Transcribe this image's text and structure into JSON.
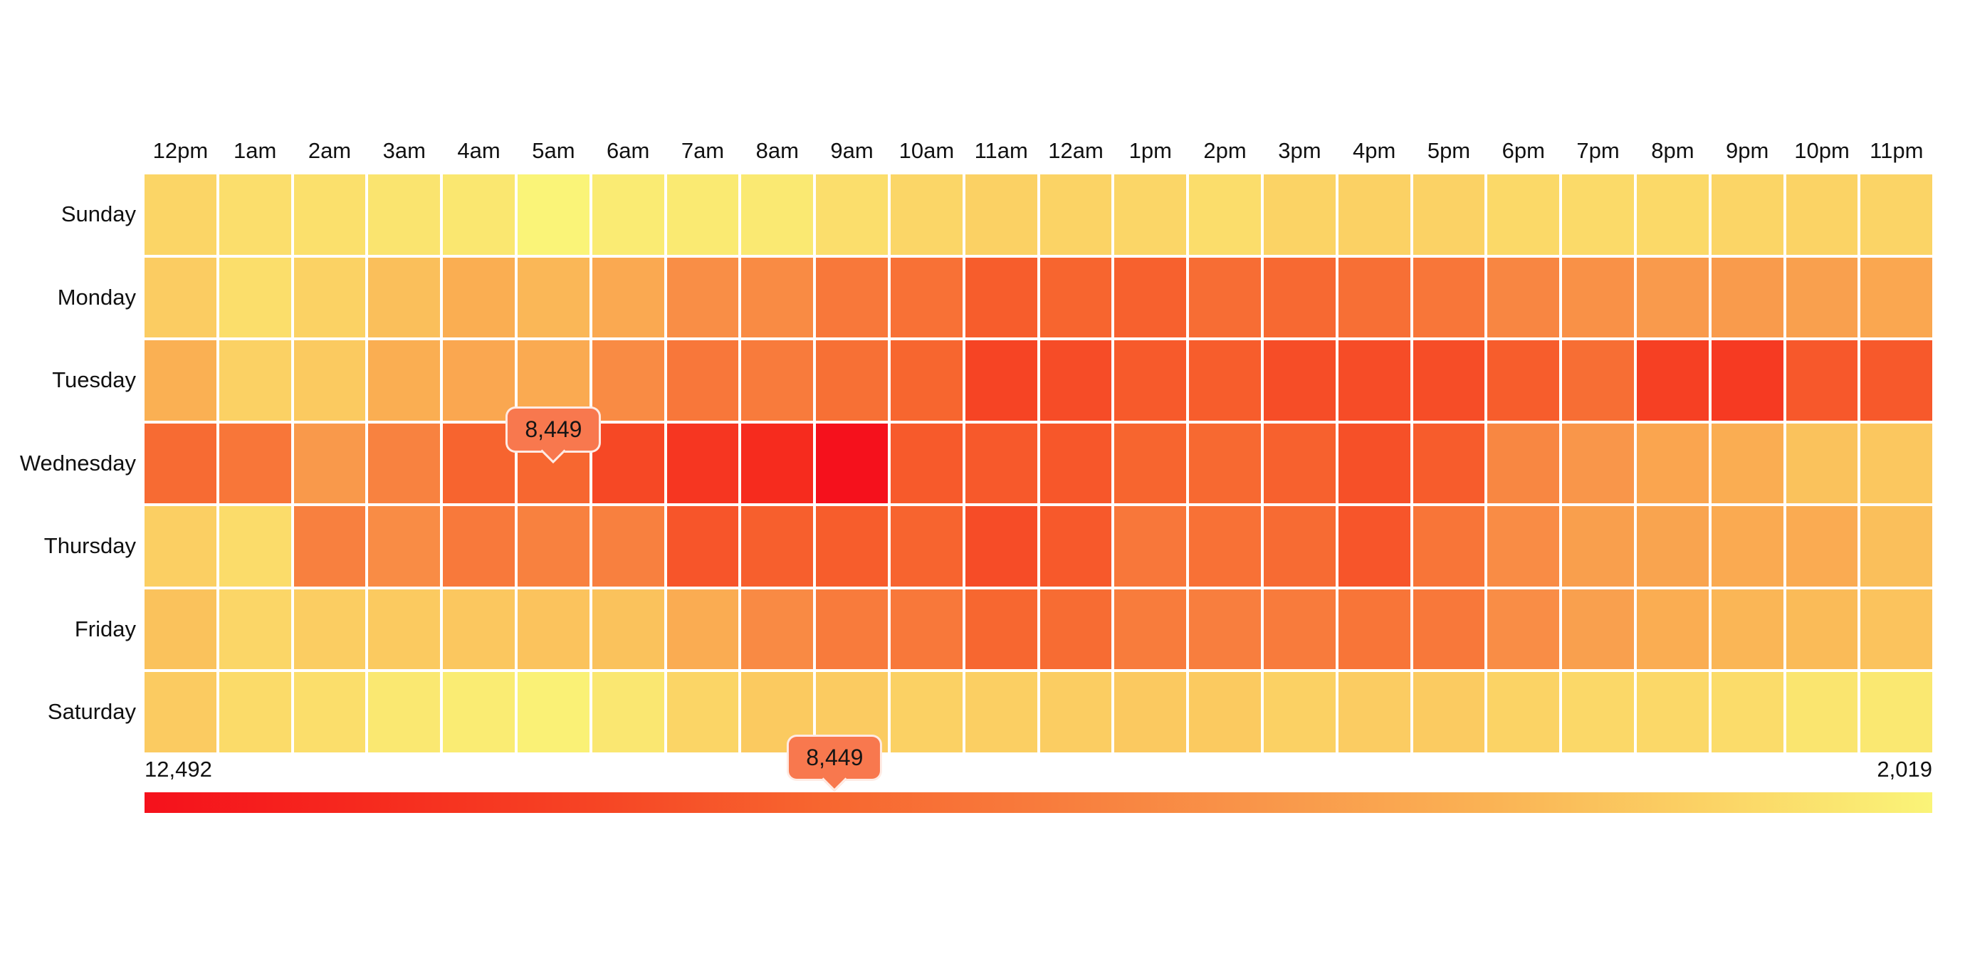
{
  "chart_data": {
    "type": "heatmap",
    "title": "",
    "x_categories": [
      "12pm",
      "1am",
      "2am",
      "3am",
      "4am",
      "5am",
      "6am",
      "7am",
      "8am",
      "9am",
      "10am",
      "11am",
      "12am",
      "1pm",
      "2pm",
      "3pm",
      "4pm",
      "5pm",
      "6pm",
      "7pm",
      "8pm",
      "9pm",
      "10pm",
      "11pm"
    ],
    "y_categories": [
      "Sunday",
      "Monday",
      "Tuesday",
      "Wednesday",
      "Thursday",
      "Friday",
      "Saturday"
    ],
    "values": [
      [
        3250,
        2880,
        2820,
        2650,
        2540,
        2019,
        2390,
        2400,
        2450,
        2880,
        3200,
        3390,
        3330,
        3200,
        2940,
        3330,
        3420,
        3360,
        3090,
        3060,
        3090,
        3240,
        3330,
        3280
      ],
      [
        3590,
        2900,
        3370,
        4110,
        4840,
        4440,
        5040,
        6340,
        6470,
        7440,
        7870,
        8900,
        8570,
        8740,
        8100,
        8300,
        7980,
        7570,
        6700,
        6200,
        5740,
        5690,
        5480,
        5140
      ],
      [
        4740,
        3420,
        3690,
        4840,
        5160,
        4990,
        6480,
        7500,
        7270,
        7920,
        8520,
        9870,
        9560,
        8990,
        8900,
        9500,
        9560,
        9500,
        8900,
        8050,
        10080,
        10400,
        9080,
        9040
      ],
      [
        8200,
        7570,
        5790,
        6900,
        8620,
        8449,
        9700,
        10600,
        11130,
        12492,
        9000,
        9040,
        9130,
        8570,
        8350,
        8720,
        9380,
        8940,
        6650,
        5950,
        5240,
        4890,
        4000,
        3800
      ],
      [
        3500,
        2960,
        7000,
        6420,
        7380,
        6950,
        7000,
        9200,
        8800,
        8900,
        8620,
        9560,
        9040,
        7500,
        7850,
        8200,
        9200,
        7630,
        6420,
        5530,
        5300,
        5000,
        4950,
        4110
      ],
      [
        4000,
        3200,
        3550,
        3690,
        3800,
        3970,
        4000,
        4940,
        6530,
        7270,
        7440,
        8460,
        8150,
        7210,
        7100,
        7270,
        7630,
        7440,
        6360,
        5480,
        4890,
        4480,
        4300,
        3970
      ],
      [
        3640,
        3030,
        2910,
        2480,
        2330,
        2130,
        2520,
        3250,
        3690,
        3640,
        3420,
        3470,
        3550,
        3740,
        3690,
        3420,
        3590,
        3640,
        3330,
        3140,
        3140,
        2960,
        2620,
        2480
      ]
    ],
    "value_range": {
      "max": 12492,
      "min": 2019
    },
    "color_scale": {
      "description": "legend gradient left-to-right, left = max value",
      "stops": [
        "#F5111C",
        "#F62A1E",
        "#F64424",
        "#F7652F",
        "#F87B3C",
        "#F9964A",
        "#FAB254",
        "#FBD365",
        "#FAF478"
      ]
    },
    "legend": {
      "max_label": "12,492",
      "min_label": "2,019",
      "marker_value": 8449,
      "marker_label": "8,449"
    },
    "tooltip": {
      "day": "Wednesday",
      "hour": "5am",
      "value": 8449,
      "value_label": "8,449"
    }
  },
  "style": {
    "background": "#FFFFFF",
    "text_color": "#111111",
    "tooltip_bg": "#F8784E",
    "tooltip_border": "rgba(255,255,255,0.85)"
  }
}
